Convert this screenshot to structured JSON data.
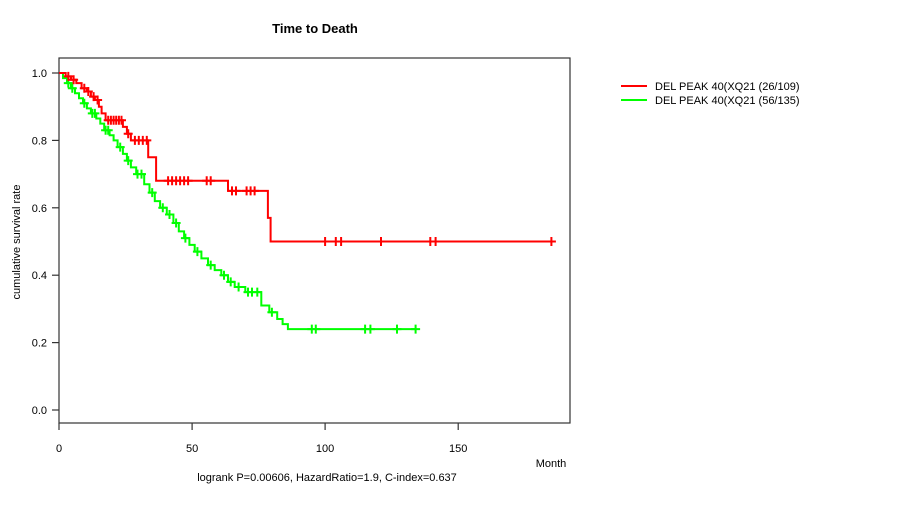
{
  "figure": {
    "title": "Time to Death",
    "annotation": "logrank P=0.00606, HazardRatio=1.9, C-index=0.637",
    "x_axis": {
      "label": "Month",
      "ticks": [
        "0",
        "50",
        "100",
        "150"
      ]
    },
    "y_axis": {
      "label": "cumulative survival rate",
      "ticks": [
        "1.0",
        "0.8",
        "0.6",
        "0.4",
        "0.2",
        "0.0"
      ]
    },
    "legend": {
      "items": [
        {
          "label": "DEL PEAK 40(XQ21 (26/109)",
          "color": "#ff0000"
        },
        {
          "label": "DEL PEAK 40(XQ21 (56/135)",
          "color": "#00ff00"
        }
      ]
    }
  },
  "chart_data": {
    "type": "line",
    "subtype": "kaplan-meier-step",
    "title": "Time to Death",
    "xlabel": "Month",
    "ylabel": "cumulative survival rate",
    "xlim": [
      0,
      192
    ],
    "ylim": [
      0,
      1.0
    ],
    "x_tick_values": [
      0,
      50,
      100,
      150
    ],
    "y_tick_values": [
      1.0,
      0.8,
      0.6,
      0.4,
      0.2,
      0.0
    ],
    "grid": false,
    "legend_position": "right-outside",
    "annotation": "logrank P=0.00606, HazardRatio=1.9, C-index=0.637",
    "series": [
      {
        "name": "DEL PEAK 40(XQ21 (26/109)",
        "color": "#ff0000",
        "start": [
          0,
          1.0
        ],
        "end_x": 185,
        "steps": [
          [
            2.5,
            0.99
          ],
          [
            4.5,
            0.98
          ],
          [
            6.5,
            0.97
          ],
          [
            8.5,
            0.955
          ],
          [
            10.5,
            0.945
          ],
          [
            12,
            0.93
          ],
          [
            13.5,
            0.92
          ],
          [
            15,
            0.9
          ],
          [
            16,
            0.88
          ],
          [
            17.5,
            0.86
          ],
          [
            24,
            0.84
          ],
          [
            25.5,
            0.82
          ],
          [
            27,
            0.8
          ],
          [
            33.5,
            0.75
          ],
          [
            36.5,
            0.68
          ],
          [
            63.5,
            0.65
          ],
          [
            78.5,
            0.57
          ],
          [
            79.5,
            0.5
          ]
        ],
        "censor_marks": [
          [
            3.5,
            0.99
          ],
          [
            5.5,
            0.98
          ],
          [
            9.5,
            0.955
          ],
          [
            11,
            0.945
          ],
          [
            13,
            0.93
          ],
          [
            14.5,
            0.92
          ],
          [
            18.5,
            0.86
          ],
          [
            19.5,
            0.86
          ],
          [
            20.5,
            0.86
          ],
          [
            21.5,
            0.86
          ],
          [
            22.5,
            0.86
          ],
          [
            23.5,
            0.86
          ],
          [
            26,
            0.82
          ],
          [
            28.5,
            0.8
          ],
          [
            30,
            0.8
          ],
          [
            31.5,
            0.8
          ],
          [
            33,
            0.8
          ],
          [
            41,
            0.68
          ],
          [
            42.5,
            0.68
          ],
          [
            44,
            0.68
          ],
          [
            45.5,
            0.68
          ],
          [
            47,
            0.68
          ],
          [
            48.5,
            0.68
          ],
          [
            55.5,
            0.68
          ],
          [
            57,
            0.68
          ],
          [
            65,
            0.65
          ],
          [
            66.5,
            0.65
          ],
          [
            70.5,
            0.65
          ],
          [
            72,
            0.65
          ],
          [
            73.5,
            0.65
          ],
          [
            100,
            0.5
          ],
          [
            104,
            0.5
          ],
          [
            106,
            0.5
          ],
          [
            121,
            0.5
          ],
          [
            139.5,
            0.5
          ],
          [
            141.5,
            0.5
          ],
          [
            185,
            0.5
          ]
        ]
      },
      {
        "name": "DEL PEAK 40(XQ21 (56/135)",
        "color": "#00ff00",
        "start": [
          0,
          1.0
        ],
        "end_x": 134,
        "steps": [
          [
            1.5,
            0.985
          ],
          [
            3,
            0.97
          ],
          [
            4.5,
            0.955
          ],
          [
            6,
            0.94
          ],
          [
            7.5,
            0.925
          ],
          [
            9,
            0.91
          ],
          [
            10.5,
            0.895
          ],
          [
            12,
            0.88
          ],
          [
            14,
            0.865
          ],
          [
            15.5,
            0.85
          ],
          [
            17,
            0.83
          ],
          [
            19,
            0.815
          ],
          [
            20.5,
            0.8
          ],
          [
            22,
            0.78
          ],
          [
            24,
            0.76
          ],
          [
            25.5,
            0.74
          ],
          [
            27,
            0.72
          ],
          [
            29,
            0.7
          ],
          [
            32,
            0.67
          ],
          [
            34,
            0.645
          ],
          [
            36,
            0.62
          ],
          [
            38,
            0.6
          ],
          [
            40.5,
            0.58
          ],
          [
            43,
            0.555
          ],
          [
            45,
            0.53
          ],
          [
            47,
            0.51
          ],
          [
            49,
            0.49
          ],
          [
            51,
            0.47
          ],
          [
            53.5,
            0.45
          ],
          [
            56,
            0.43
          ],
          [
            58.5,
            0.415
          ],
          [
            61,
            0.4
          ],
          [
            63.5,
            0.38
          ],
          [
            66,
            0.365
          ],
          [
            70,
            0.35
          ],
          [
            76,
            0.31
          ],
          [
            79,
            0.29
          ],
          [
            82,
            0.27
          ],
          [
            84,
            0.255
          ],
          [
            86,
            0.24
          ]
        ],
        "censor_marks": [
          [
            3.5,
            0.97
          ],
          [
            5,
            0.955
          ],
          [
            9.5,
            0.91
          ],
          [
            12.5,
            0.88
          ],
          [
            13.5,
            0.88
          ],
          [
            17.5,
            0.83
          ],
          [
            18.5,
            0.83
          ],
          [
            23,
            0.78
          ],
          [
            26,
            0.74
          ],
          [
            29.5,
            0.7
          ],
          [
            31,
            0.7
          ],
          [
            35,
            0.645
          ],
          [
            39,
            0.6
          ],
          [
            41.5,
            0.58
          ],
          [
            44,
            0.555
          ],
          [
            47.5,
            0.51
          ],
          [
            52,
            0.47
          ],
          [
            57,
            0.43
          ],
          [
            62,
            0.4
          ],
          [
            64.5,
            0.38
          ],
          [
            67.5,
            0.365
          ],
          [
            71,
            0.35
          ],
          [
            72.5,
            0.35
          ],
          [
            74.5,
            0.35
          ],
          [
            80,
            0.29
          ],
          [
            95,
            0.24
          ],
          [
            96.5,
            0.24
          ],
          [
            115,
            0.24
          ],
          [
            117,
            0.24
          ],
          [
            127,
            0.24
          ],
          [
            134,
            0.24
          ]
        ]
      }
    ]
  }
}
